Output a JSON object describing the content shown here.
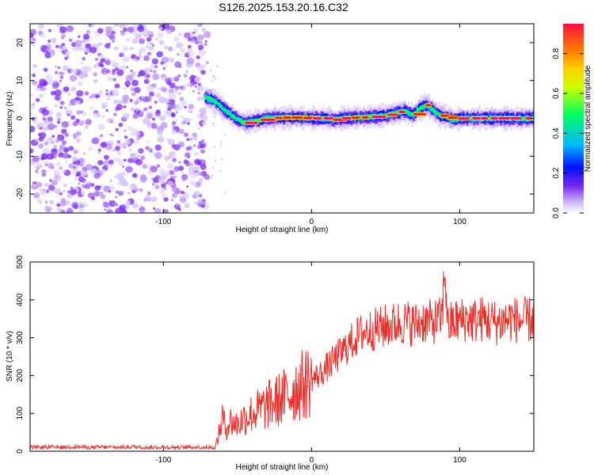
{
  "title": "S126.2025.153.20.16.C32",
  "chart_data": [
    {
      "type": "heatmap",
      "xlabel": "Height of straight line (km)",
      "ylabel": "Frequency (Hz)",
      "xlim": [
        -190,
        150
      ],
      "ylim": [
        -25,
        25
      ],
      "xticks": [
        -100,
        0,
        100
      ],
      "yticks": [
        -20,
        -10,
        0,
        10,
        20
      ],
      "colorbar": {
        "label": "Normalized spectral amplitude",
        "range": [
          0,
          0.95
        ],
        "ticks": [
          0.0,
          0.2,
          0.4,
          0.6,
          0.8
        ],
        "colors": [
          "#ffffff",
          "#c9b1f7",
          "#7a2bf0",
          "#0010ff",
          "#00b8ff",
          "#00ff60",
          "#c8ff00",
          "#ffd200",
          "#ff7a00",
          "#ff1040"
        ]
      },
      "noise_region_x": [
        -190,
        -70
      ],
      "ridge": [
        {
          "x": -72,
          "f": 5.5
        },
        {
          "x": -68,
          "f": 5.0
        },
        {
          "x": -64,
          "f": 4.0
        },
        {
          "x": -60,
          "f": 2.5
        },
        {
          "x": -55,
          "f": 1.0
        },
        {
          "x": -50,
          "f": -0.5
        },
        {
          "x": -45,
          "f": -1.2
        },
        {
          "x": -40,
          "f": -0.8
        },
        {
          "x": -30,
          "f": 0.0
        },
        {
          "x": -20,
          "f": 0.2
        },
        {
          "x": -10,
          "f": 0.2
        },
        {
          "x": 0,
          "f": 0.0
        },
        {
          "x": 10,
          "f": 0.0
        },
        {
          "x": 15,
          "f": -0.4
        },
        {
          "x": 20,
          "f": 0.0
        },
        {
          "x": 30,
          "f": 0.2
        },
        {
          "x": 40,
          "f": 0.4
        },
        {
          "x": 50,
          "f": 0.8
        },
        {
          "x": 55,
          "f": 1.3
        },
        {
          "x": 62,
          "f": 2.0
        },
        {
          "x": 68,
          "f": 0.8
        },
        {
          "x": 72,
          "f": 2.5
        },
        {
          "x": 77,
          "f": 3.5
        },
        {
          "x": 82,
          "f": 2.0
        },
        {
          "x": 86,
          "f": 0.8
        },
        {
          "x": 90,
          "f": 0.5
        },
        {
          "x": 95,
          "f": -0.3
        },
        {
          "x": 100,
          "f": 0.0
        },
        {
          "x": 110,
          "f": 0.0
        },
        {
          "x": 120,
          "f": 0.0
        },
        {
          "x": 130,
          "f": 0.0
        },
        {
          "x": 140,
          "f": 0.0
        },
        {
          "x": 150,
          "f": 0.0
        }
      ]
    },
    {
      "type": "line",
      "xlabel": "Height of straight line (km)",
      "ylabel": "SNR (10 * v/v)",
      "xlim": [
        -190,
        150
      ],
      "ylim": [
        0,
        500
      ],
      "xticks": [
        -100,
        0,
        100
      ],
      "yticks": [
        0,
        100,
        200,
        300,
        400,
        500
      ],
      "color": "#e8302a",
      "series": [
        {
          "x": [
            -190,
            -180,
            -170,
            -160,
            -150,
            -140,
            -130,
            -120,
            -110,
            -100,
            -90,
            -80,
            -70,
            -65,
            -62,
            -60,
            -58,
            -55,
            -50,
            -45,
            -40,
            -35,
            -30,
            -25,
            -20,
            -15,
            -10,
            -5,
            0,
            5,
            10,
            15,
            20,
            25,
            30,
            35,
            40,
            45,
            50,
            55,
            60,
            65,
            70,
            75,
            80,
            85,
            88,
            90,
            92,
            95,
            100,
            105,
            110,
            115,
            120,
            125,
            130,
            135,
            140,
            145,
            150
          ],
          "y": [
            10,
            11,
            10,
            12,
            10,
            11,
            10,
            12,
            10,
            11,
            10,
            11,
            10,
            10,
            55,
            90,
            60,
            80,
            70,
            90,
            100,
            110,
            120,
            130,
            140,
            150,
            170,
            175,
            190,
            200,
            220,
            240,
            260,
            280,
            300,
            315,
            320,
            325,
            330,
            335,
            340,
            340,
            335,
            345,
            340,
            345,
            350,
            490,
            330,
            340,
            345,
            350,
            345,
            350,
            345,
            340,
            345,
            350,
            345,
            345,
            350
          ]
        }
      ]
    }
  ]
}
